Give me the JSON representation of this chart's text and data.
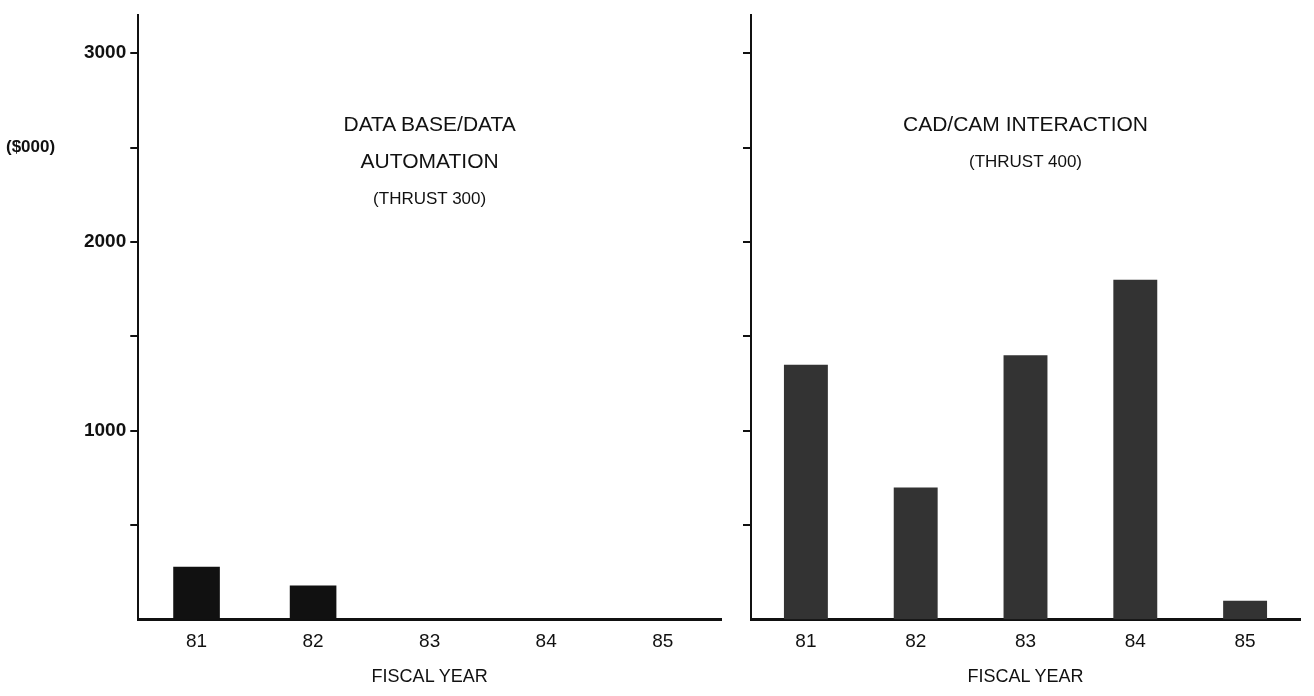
{
  "chart_data": [
    {
      "type": "bar",
      "title": "DATA BASE/DATA AUTOMATION",
      "subtitle": "(THRUST 300)",
      "xlabel": "FISCAL YEAR",
      "ylabel": "($000)",
      "categories": [
        "81",
        "82",
        "83",
        "84",
        "85"
      ],
      "values": [
        280,
        180,
        null,
        null,
        null
      ],
      "color": "#111111",
      "ylim": [
        0,
        3200
      ],
      "yticks": [
        {
          "value": 500,
          "label": null
        },
        1000,
        {
          "value": 1500,
          "label": null
        },
        2000,
        {
          "value": 2500,
          "label": null
        },
        3000
      ]
    },
    {
      "type": "bar",
      "title": "CAD/CAM INTERACTION",
      "subtitle": "(THRUST 400)",
      "xlabel": "FISCAL YEAR",
      "categories": [
        "81",
        "82",
        "83",
        "84",
        "85"
      ],
      "values": [
        1350,
        700,
        1400,
        1800,
        100
      ],
      "color": "#333333",
      "ylim": [
        0,
        3200
      ],
      "yticks": [
        {
          "value": 500,
          "label": null
        },
        1000,
        {
          "value": 1500,
          "label": null
        },
        2000,
        {
          "value": 2500,
          "label": null
        },
        3000
      ],
      "tick_labels": "x"
    }
  ]
}
